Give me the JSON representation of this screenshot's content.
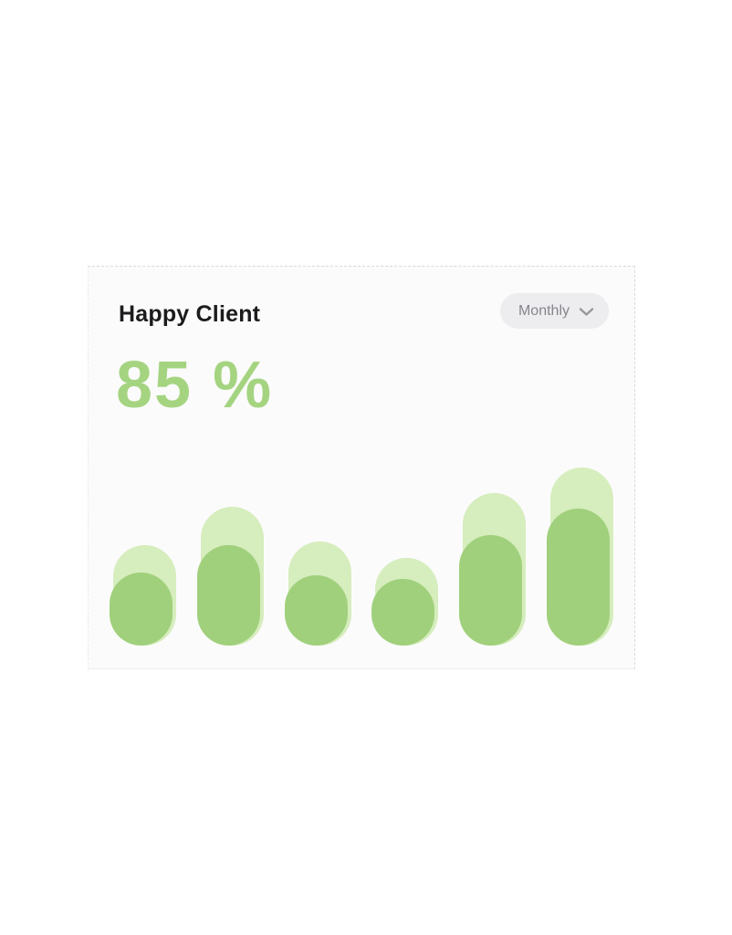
{
  "card": {
    "title": "Happy Client",
    "headline": "85 %",
    "period_button": {
      "label": "Monthly",
      "icon": "chevron-down-icon"
    },
    "colors": {
      "card_bg": "#fbfbfb",
      "border_dotted": "#d9d9d9",
      "title_text": "#1c1c1e",
      "headline_text": "#a5d481",
      "button_bg": "#ededf0",
      "button_text": "#85868b",
      "chevron": "#97979d"
    }
  },
  "chart_data": {
    "type": "bar",
    "title": "Happy Client",
    "headline_value": "85 %",
    "x": [
      1,
      2,
      3,
      4,
      5,
      6
    ],
    "categories": [
      "",
      "",
      "",
      "",
      "",
      ""
    ],
    "series": [
      {
        "name": "series-1-background-pill",
        "color": "#d6edbd",
        "values": [
          56.4,
          77.9,
          58.5,
          49.2,
          85.6,
          100
        ]
      },
      {
        "name": "series-2-value-pill",
        "color": "#a0d07c",
        "values": [
          41.0,
          56.4,
          39.5,
          37.4,
          62.1,
          76.9
        ]
      }
    ],
    "xlabel": "",
    "ylabel": "",
    "ylim": [
      0,
      100
    ],
    "grid": false,
    "legend": false,
    "bar_style": "rounded pill, dual-layer overlapped, bottom-aligned"
  }
}
